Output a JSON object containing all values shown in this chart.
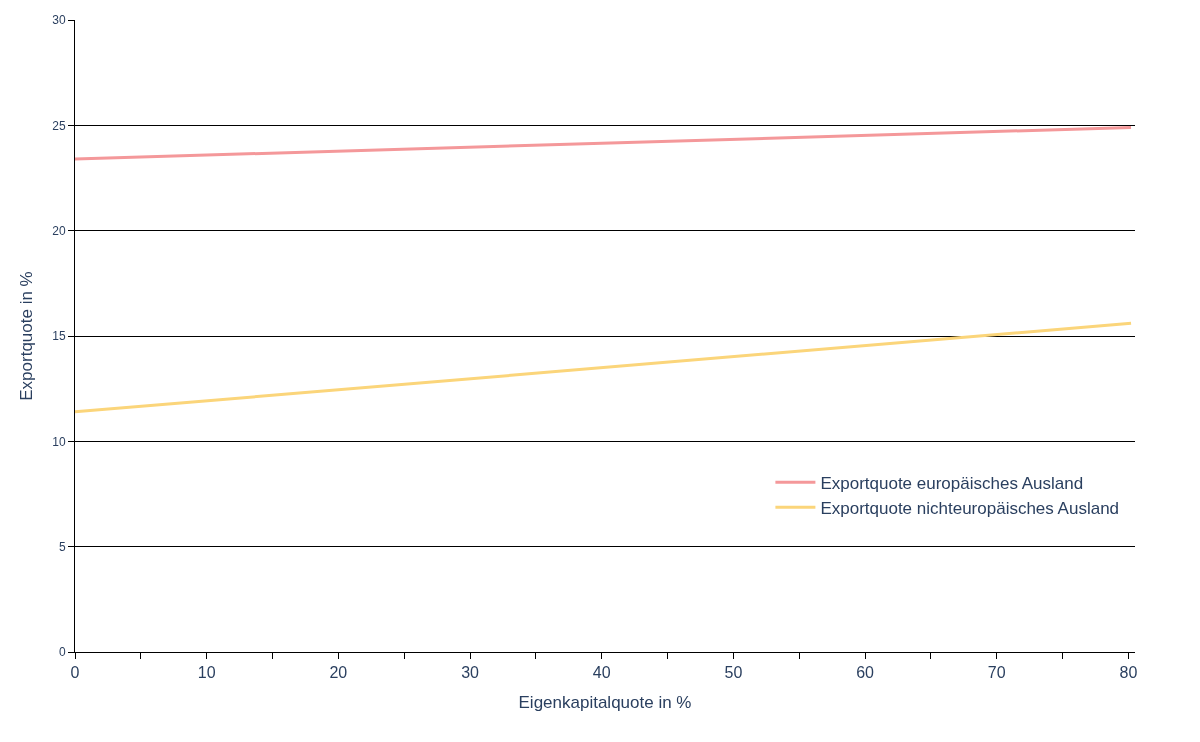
{
  "chart_data": {
    "type": "line",
    "xlabel": "Eigenkapitalquote in %",
    "ylabel": "Exportquote in %",
    "x": [
      0,
      80.2
    ],
    "series": [
      {
        "name": "Exportquote europäisches Ausland",
        "color": "#f4989a",
        "values": [
          23.4,
          24.9
        ]
      },
      {
        "name": "Exportquote nichteuropäisches Ausland",
        "color": "#fbd57a",
        "values": [
          11.4,
          15.6
        ]
      }
    ],
    "xlim": [
      0,
      80.5
    ],
    "xticks": [
      0,
      {
        "value": 5,
        "label": null
      },
      10,
      {
        "value": 15,
        "label": null
      },
      20,
      {
        "value": 25,
        "label": null
      },
      30,
      {
        "value": 35,
        "label": null
      },
      40,
      {
        "value": 45,
        "label": null
      },
      50,
      {
        "value": 55,
        "label": null
      },
      60,
      {
        "value": 65,
        "label": null
      },
      70,
      {
        "value": 75,
        "label": null
      },
      80
    ],
    "ylim": [
      0,
      30
    ],
    "yticks": [
      0,
      5,
      10,
      15,
      20,
      25,
      30
    ],
    "grid": "y",
    "legend": "bottom right",
    "marker": "none",
    "line_style": "solid"
  }
}
